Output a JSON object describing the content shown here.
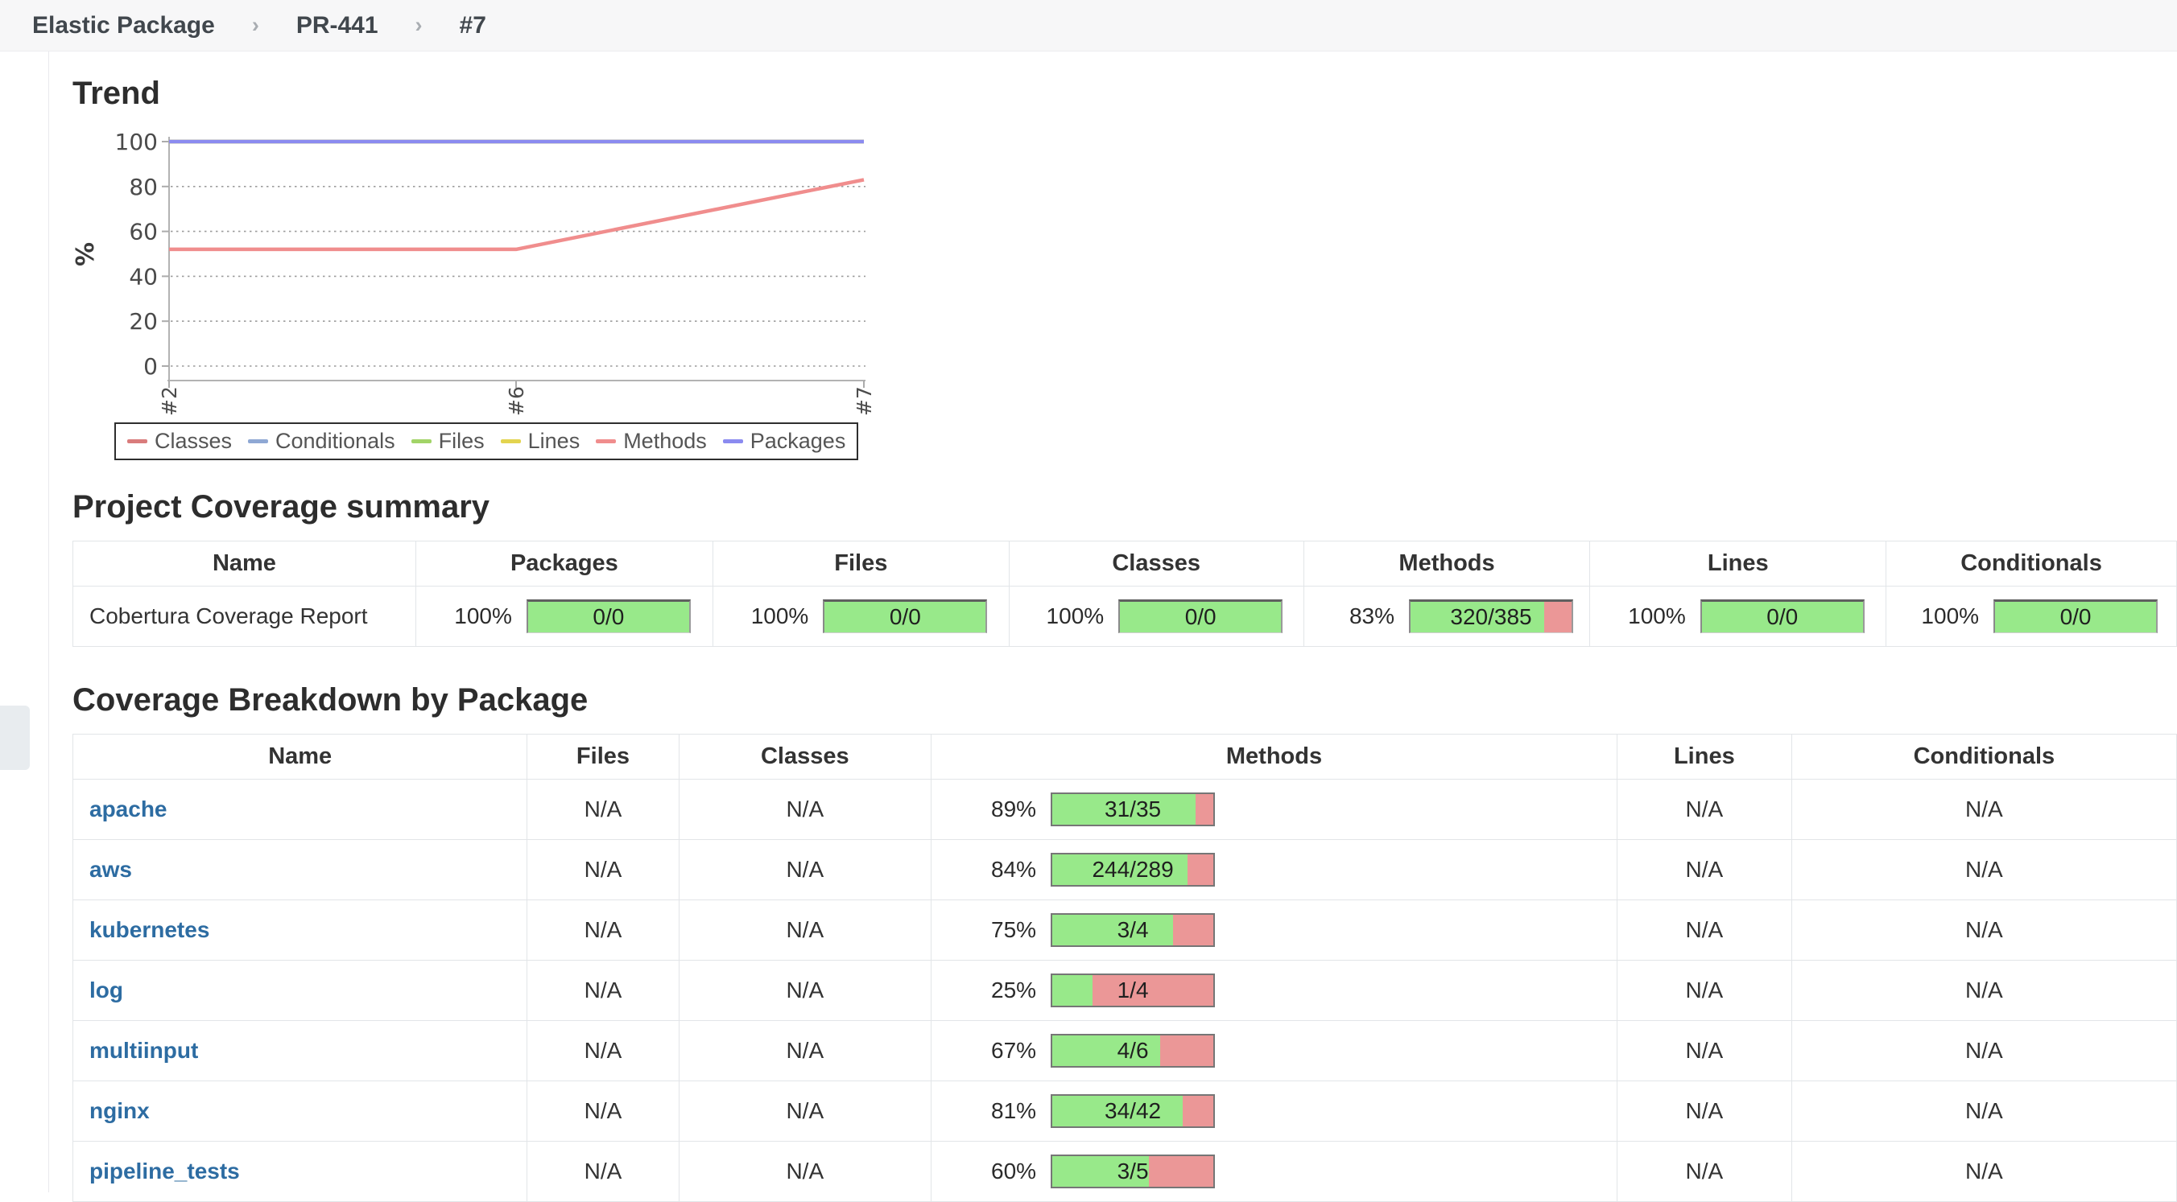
{
  "breadcrumb": {
    "separator": "›",
    "items": [
      "Elastic Package",
      "PR-441",
      "#7"
    ]
  },
  "trend": {
    "title": "Trend",
    "chart_data": {
      "type": "line",
      "x": [
        "#2",
        "#6",
        "#7"
      ],
      "ylabel": "%",
      "ylim": [
        0,
        100
      ],
      "yticks": [
        0,
        20,
        40,
        60,
        80,
        100
      ],
      "grid": "horizontal-dotted",
      "legend_position": "bottom-boxed",
      "series": [
        {
          "name": "Classes",
          "color": "#d97c7c",
          "values": [
            100,
            100,
            100
          ]
        },
        {
          "name": "Conditionals",
          "color": "#8fa8d4",
          "values": [
            100,
            100,
            100
          ]
        },
        {
          "name": "Files",
          "color": "#a2d468",
          "values": [
            100,
            100,
            100
          ]
        },
        {
          "name": "Lines",
          "color": "#e3d44f",
          "values": [
            100,
            100,
            100
          ]
        },
        {
          "name": "Methods",
          "color": "#f08d8d",
          "values": [
            52,
            52,
            83
          ]
        },
        {
          "name": "Packages",
          "color": "#8b8bf0",
          "values": [
            100,
            100,
            100
          ]
        }
      ]
    }
  },
  "summary": {
    "title": "Project Coverage summary",
    "columns": [
      "Name",
      "Packages",
      "Files",
      "Classes",
      "Methods",
      "Lines",
      "Conditionals"
    ],
    "rows": [
      {
        "name": "Cobertura Coverage Report",
        "metrics": [
          {
            "column": "Packages",
            "percent": "100%",
            "ratio": "0/0",
            "value": 100
          },
          {
            "column": "Files",
            "percent": "100%",
            "ratio": "0/0",
            "value": 100
          },
          {
            "column": "Classes",
            "percent": "100%",
            "ratio": "0/0",
            "value": 100
          },
          {
            "column": "Methods",
            "percent": "83%",
            "ratio": "320/385",
            "value": 83
          },
          {
            "column": "Lines",
            "percent": "100%",
            "ratio": "0/0",
            "value": 100
          },
          {
            "column": "Conditionals",
            "percent": "100%",
            "ratio": "0/0",
            "value": 100
          }
        ]
      }
    ]
  },
  "breakdown": {
    "title": "Coverage Breakdown by Package",
    "columns": [
      "Name",
      "Files",
      "Classes",
      "Methods",
      "Lines",
      "Conditionals"
    ],
    "na": "N/A",
    "rows": [
      {
        "name": "apache",
        "files": "N/A",
        "classes": "N/A",
        "methods": {
          "percent": "89%",
          "ratio": "31/35",
          "value": 89
        },
        "lines": "N/A",
        "conditionals": "N/A"
      },
      {
        "name": "aws",
        "files": "N/A",
        "classes": "N/A",
        "methods": {
          "percent": "84%",
          "ratio": "244/289",
          "value": 84
        },
        "lines": "N/A",
        "conditionals": "N/A"
      },
      {
        "name": "kubernetes",
        "files": "N/A",
        "classes": "N/A",
        "methods": {
          "percent": "75%",
          "ratio": "3/4",
          "value": 75
        },
        "lines": "N/A",
        "conditionals": "N/A"
      },
      {
        "name": "log",
        "files": "N/A",
        "classes": "N/A",
        "methods": {
          "percent": "25%",
          "ratio": "1/4",
          "value": 25
        },
        "lines": "N/A",
        "conditionals": "N/A"
      },
      {
        "name": "multiinput",
        "files": "N/A",
        "classes": "N/A",
        "methods": {
          "percent": "67%",
          "ratio": "4/6",
          "value": 67
        },
        "lines": "N/A",
        "conditionals": "N/A"
      },
      {
        "name": "nginx",
        "files": "N/A",
        "classes": "N/A",
        "methods": {
          "percent": "81%",
          "ratio": "34/42",
          "value": 81
        },
        "lines": "N/A",
        "conditionals": "N/A"
      },
      {
        "name": "pipeline_tests",
        "files": "N/A",
        "classes": "N/A",
        "methods": {
          "percent": "60%",
          "ratio": "3/5",
          "value": 60
        },
        "lines": "N/A",
        "conditionals": "N/A"
      }
    ]
  },
  "colors": {
    "bar_green": "#98e98a",
    "bar_red": "#eb9797",
    "link_blue": "#2d6ca2",
    "topbar_bg": "#f7f7f8",
    "axis_text": "#4a4a4a"
  }
}
